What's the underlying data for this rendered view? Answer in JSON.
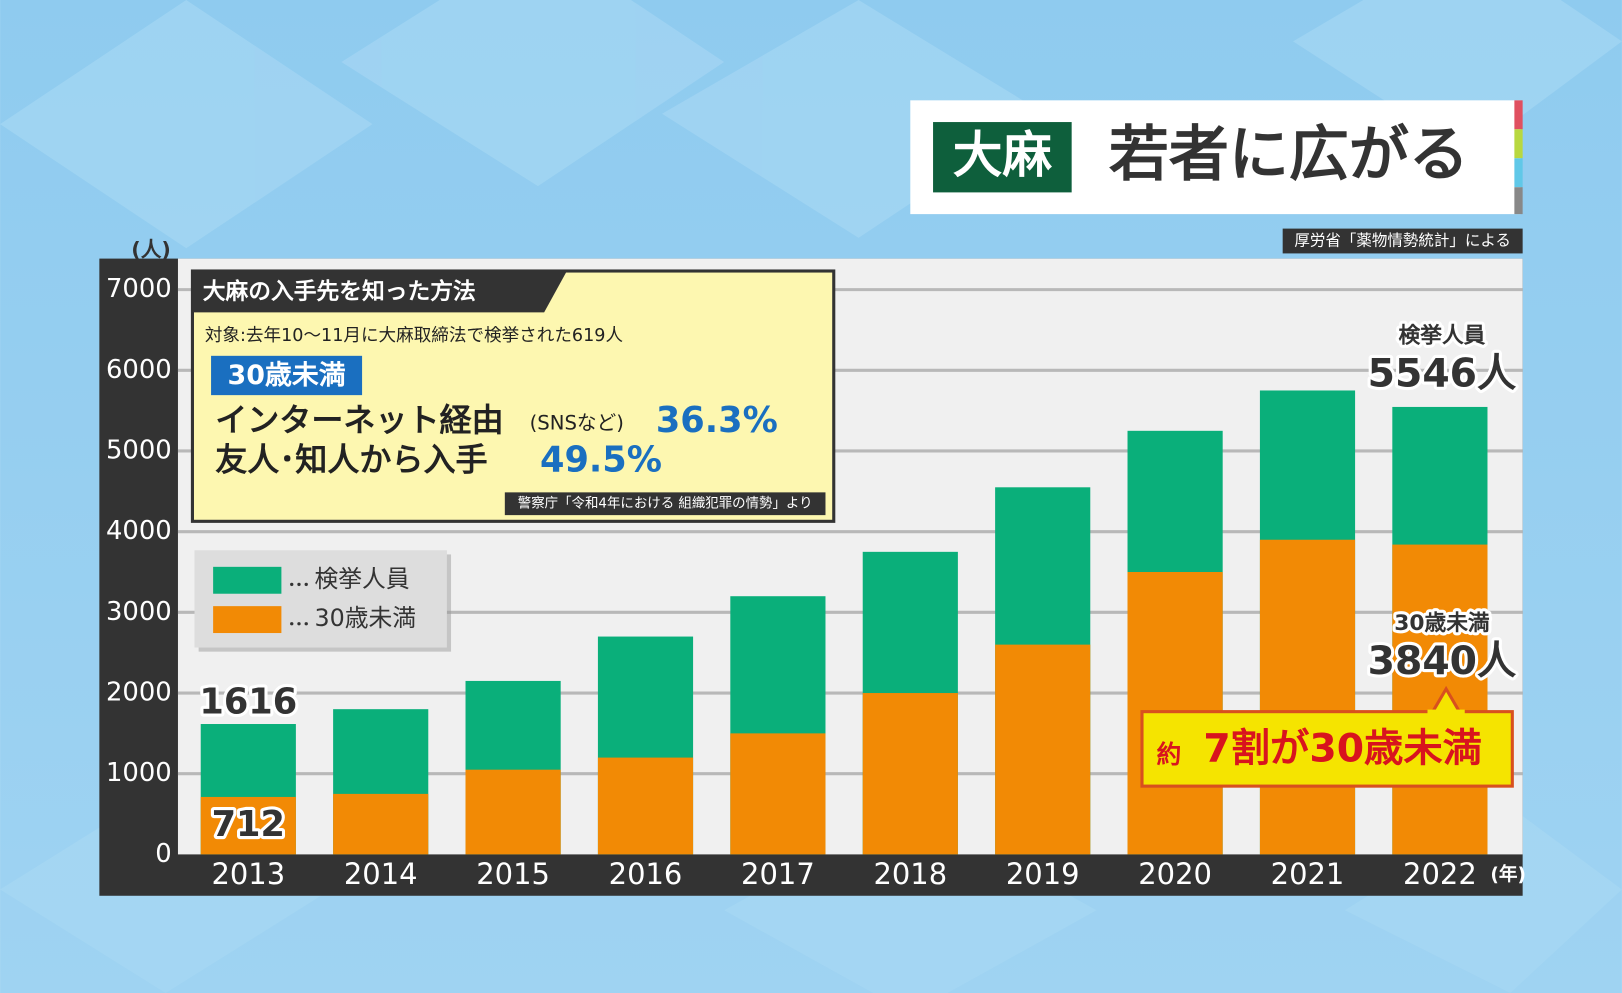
{
  "chart_data": {
    "type": "bar",
    "title_badge": "大麻",
    "title": "若者に広がる",
    "source": "厚労省「薬物情勢統計」による",
    "y_unit": "(人)",
    "x_unit": "(年)",
    "categories": [
      "2013",
      "2014",
      "2015",
      "2016",
      "2017",
      "2018",
      "2019",
      "2020",
      "2021",
      "2022"
    ],
    "series": [
      {
        "name": "検挙人員",
        "color": "#0aaf7a",
        "values": [
          1616,
          1800,
          2150,
          2700,
          3200,
          3750,
          4550,
          5250,
          5750,
          5546
        ],
        "value_labels": [
          "1616",
          null,
          null,
          null,
          null,
          null,
          null,
          null,
          null,
          "5546人"
        ]
      },
      {
        "name": "30歳未満",
        "color": "#f28a05",
        "values": [
          712,
          750,
          1050,
          1200,
          1500,
          2000,
          2600,
          3500,
          3900,
          3840
        ],
        "value_labels": [
          "712",
          null,
          null,
          null,
          null,
          null,
          null,
          null,
          null,
          "3840人"
        ]
      }
    ],
    "ylim": [
      0,
      7000
    ],
    "yticks": [
      0,
      1000,
      2000,
      3000,
      4000,
      5000,
      6000,
      7000
    ],
    "grid": true,
    "callout": {
      "prefix": "約",
      "text": "7割が30歳未満"
    },
    "inset": {
      "title": "大麻の入手先を知った方法",
      "subject": "対象:去年10～11月に大麻取締法で検挙された619人",
      "badge": "30歳未満",
      "line1": "インターネット経由",
      "line1_note": "(SNSなど)",
      "line1_value": "36.3%",
      "line2": "友人･知人から入手",
      "line2_value": "49.5%",
      "source": "警察庁「令和4年における 組織犯罪の情勢」より"
    }
  }
}
